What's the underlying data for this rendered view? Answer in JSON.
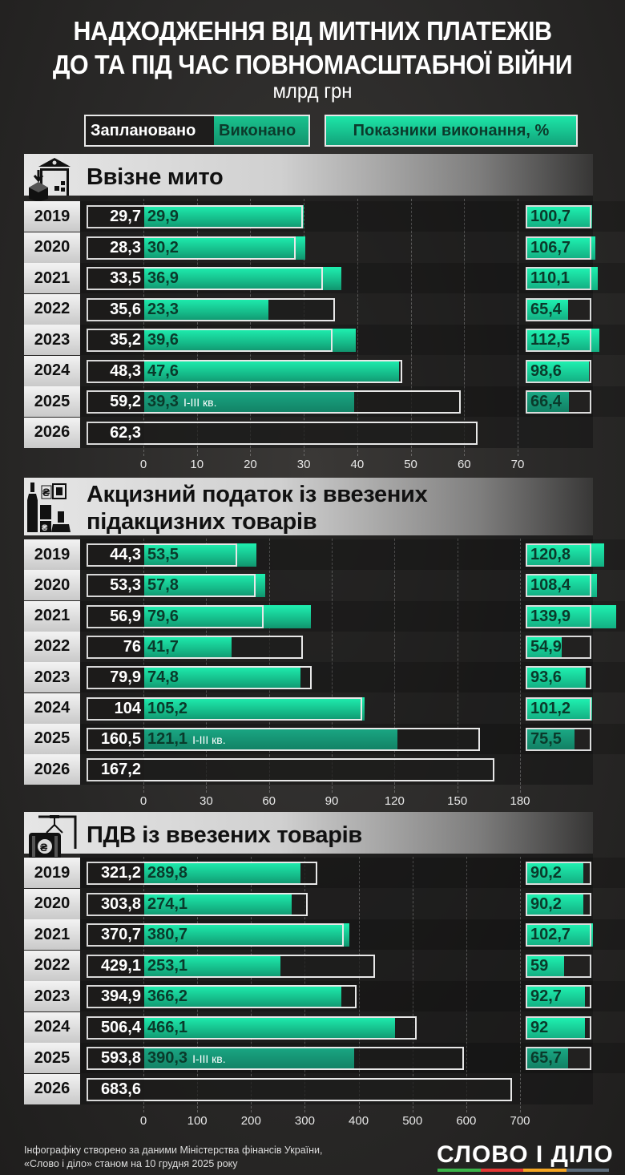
{
  "header": {
    "title_line1": "НАДХОДЖЕННЯ ВІД МИТНИХ ПЛАТЕЖІВ",
    "title_line2": "ДО ТА ПІД ЧАС ПОВНОМАСШТАБНОЇ ВІЙНИ",
    "unit": "млрд грн"
  },
  "legend": {
    "planned": "Заплановано",
    "done": "Виконано",
    "pct": "Показники виконання, %"
  },
  "colors": {
    "done": "#1de6a8",
    "done_partial": "#159a75",
    "plan_bg": "#1e1d1c",
    "outline": "#e8e8e8",
    "background": "#2a2928"
  },
  "partial_note": "I-III кв.",
  "chart_data": [
    {
      "type": "bar",
      "title": "Ввізне мито",
      "icon": "customs-warehouse-icon",
      "categories": [
        "2019",
        "2020",
        "2021",
        "2022",
        "2023",
        "2024",
        "2025",
        "2026"
      ],
      "series": [
        {
          "name": "Заплановано",
          "values": [
            29.7,
            28.3,
            33.5,
            35.6,
            35.2,
            48.3,
            59.2,
            62.3
          ]
        },
        {
          "name": "Виконано",
          "values": [
            29.9,
            30.2,
            36.9,
            23.3,
            39.6,
            47.6,
            39.3,
            null
          ]
        },
        {
          "name": "Показники виконання, %",
          "values": [
            100.7,
            106.7,
            110.1,
            65.4,
            112.5,
            98.6,
            66.4,
            null
          ]
        }
      ],
      "labels_planned": [
        "29,7",
        "28,3",
        "33,5",
        "35,6",
        "35,2",
        "48,3",
        "59,2",
        "62,3"
      ],
      "labels_done": [
        "29,9",
        "30,2",
        "36,9",
        "23,3",
        "39,6",
        "47,6",
        "39,3",
        ""
      ],
      "labels_pct": [
        "100,7",
        "106,7",
        "110,1",
        "65,4",
        "112,5",
        "98,6",
        "66,4",
        ""
      ],
      "xticks": [
        "0",
        "10",
        "20",
        "30",
        "40",
        "50",
        "60",
        "70"
      ],
      "xlim": [
        0,
        70
      ],
      "grid": true
    },
    {
      "type": "bar",
      "title_line1": "Акцизний податок із ввезених",
      "title_line2": "підакцизних товарів",
      "icon": "excise-goods-icon",
      "categories": [
        "2019",
        "2020",
        "2021",
        "2022",
        "2023",
        "2024",
        "2025",
        "2026"
      ],
      "series": [
        {
          "name": "Заплановано",
          "values": [
            44.3,
            53.3,
            56.9,
            76,
            79.9,
            104,
            160.5,
            167.2
          ]
        },
        {
          "name": "Виконано",
          "values": [
            53.5,
            57.8,
            79.6,
            41.7,
            74.8,
            105.2,
            121.1,
            null
          ]
        },
        {
          "name": "Показники виконання, %",
          "values": [
            120.8,
            108.4,
            139.9,
            54.9,
            93.6,
            101.2,
            75.5,
            null
          ]
        }
      ],
      "labels_planned": [
        "44,3",
        "53,3",
        "56,9",
        "76",
        "79,9",
        "104",
        "160,5",
        "167,2"
      ],
      "labels_done": [
        "53,5",
        "57,8",
        "79,6",
        "41,7",
        "74,8",
        "105,2",
        "121,1",
        ""
      ],
      "labels_pct": [
        "120,8",
        "108,4",
        "139,9",
        "54,9",
        "93,6",
        "101,2",
        "75,5",
        ""
      ],
      "xticks": [
        "0",
        "30",
        "60",
        "90",
        "120",
        "150",
        "180"
      ],
      "xlim": [
        0,
        180
      ],
      "grid": true
    },
    {
      "type": "bar",
      "title": "ПДВ із ввезених товарів",
      "icon": "cargo-container-icon",
      "categories": [
        "2019",
        "2020",
        "2021",
        "2022",
        "2023",
        "2024",
        "2025",
        "2026"
      ],
      "series": [
        {
          "name": "Заплановано",
          "values": [
            321.2,
            303.8,
            370.7,
            429.1,
            394.9,
            506.4,
            593.8,
            683.6
          ]
        },
        {
          "name": "Виконано",
          "values": [
            289.8,
            274.1,
            380.7,
            253.1,
            366.2,
            466.1,
            390.3,
            null
          ]
        },
        {
          "name": "Показники виконання, %",
          "values": [
            90.2,
            90.2,
            102.7,
            59,
            92.7,
            92,
            65.7,
            null
          ]
        }
      ],
      "labels_planned": [
        "321,2",
        "303,8",
        "370,7",
        "429,1",
        "394,9",
        "506,4",
        "593,8",
        "683,6"
      ],
      "labels_done": [
        "289,8",
        "274,1",
        "380,7",
        "253,1",
        "366,2",
        "466,1",
        "390,3",
        ""
      ],
      "labels_pct": [
        "90,2",
        "90,2",
        "102,7",
        "59",
        "92,7",
        "92",
        "65,7",
        ""
      ],
      "xticks": [
        "0",
        "100",
        "200",
        "300",
        "400",
        "500",
        "600",
        "700"
      ],
      "xlim": [
        0,
        700
      ],
      "grid": true
    }
  ],
  "footer": {
    "source_line1": "Інфографіку створено за даними Міністерства фінансів України,",
    "source_line2": "«Слово і діло» станом на 10 грудня 2025 року",
    "logo": "СЛОВО І ДІЛО",
    "logo_stripe": [
      "#3bb54a",
      "#e53935",
      "#f5a623",
      "#5b6b7a"
    ]
  }
}
